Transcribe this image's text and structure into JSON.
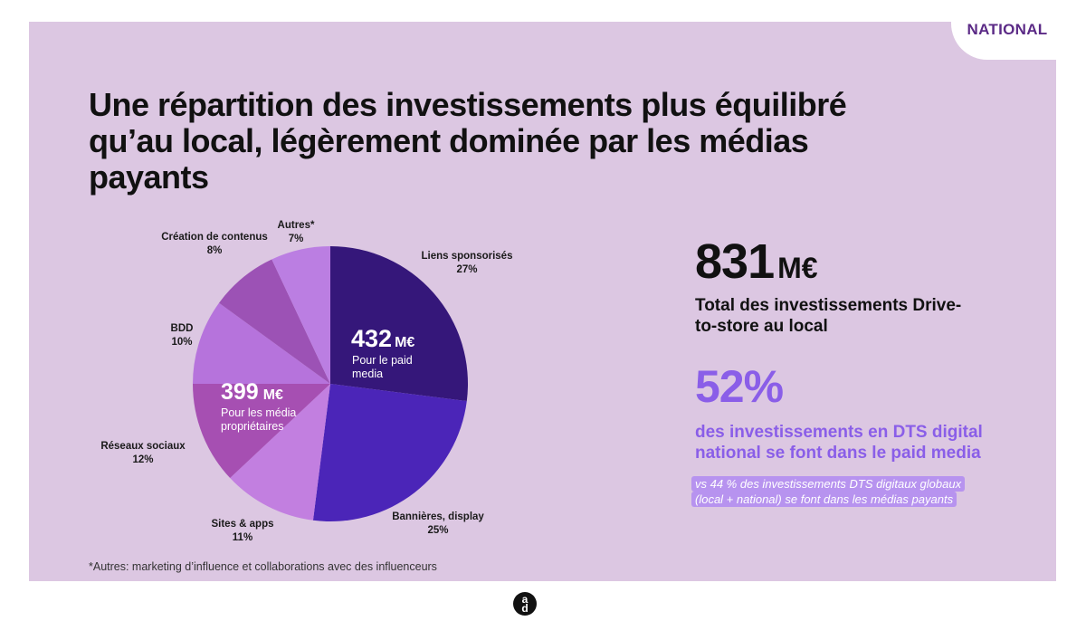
{
  "badge": "NATIONAL",
  "title": "Une répartition des investissements plus équilibré qu’au local, légèrement dominée par les médias payants",
  "chart_data": {
    "type": "pie",
    "title": "Une répartition des investissements plus équilibré qu’au local, légèrement dominée par les médias payants",
    "slices": [
      {
        "label": "Liens sponsorisés",
        "value": 27,
        "value_label": "27%",
        "color": "#35177a"
      },
      {
        "label": "Bannières, display",
        "value": 25,
        "value_label": "25%",
        "color": "#4b25b8"
      },
      {
        "label": "Sites & apps",
        "value": 11,
        "value_label": "11%",
        "color": "#c27fe0"
      },
      {
        "label": "Réseaux sociaux",
        "value": 12,
        "value_label": "12%",
        "color": "#a64fb2"
      },
      {
        "label": "BDD",
        "value": 10,
        "value_label": "10%",
        "color": "#b673dc"
      },
      {
        "label": "Création de contenus",
        "value": 8,
        "value_label": "8%",
        "color": "#9c52b5"
      },
      {
        "label": "Autres*",
        "value": 7,
        "value_label": "7%",
        "color": "#bb7ee2"
      }
    ],
    "groups": [
      {
        "value": "432",
        "unit": "M€",
        "label": "Pour le paid media"
      },
      {
        "value": "399",
        "unit": "M€",
        "label": "Pour les média propriétaires"
      }
    ]
  },
  "stats": {
    "total_value": "831",
    "total_unit": "M€",
    "total_label": "Total des investissements Drive-to-store au local",
    "pct_value": "52%",
    "pct_label": "des investissements en DTS digital national se font dans le paid media",
    "note": "vs 44 % des investissements DTS digitaux globaux (local + national) se font dans les médias payants"
  },
  "footnote": "*Autres: marketing d’influence et collaborations avec des influenceurs",
  "logo": {
    "top": "a",
    "bottom": "d"
  },
  "colors": {
    "panel": "#dcc7e2",
    "accent": "#8a5ee8",
    "badge_text": "#5b2a86"
  }
}
